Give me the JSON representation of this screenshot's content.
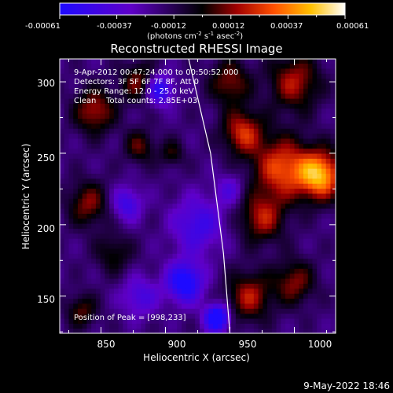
{
  "colorbar": {
    "ticks": [
      "-0.00061",
      "-0.00037",
      "-0.00012",
      "0.00012",
      "0.00037",
      "0.00061"
    ],
    "unit_main": "(photons cm",
    "unit_exp1": "-2",
    "unit_mid": " s",
    "unit_exp2": "-1",
    "unit_tail": " asec",
    "unit_exp3": "-2",
    "unit_close": ")",
    "colors": [
      "#1e0aff",
      "#5f00c8",
      "#000000",
      "#a00000",
      "#ff5000",
      "#ffc000",
      "#ffffff"
    ]
  },
  "chart_data": {
    "type": "heatmap",
    "title": "Reconstructed RHESSI Image",
    "xlabel": "Heliocentric X (arcsec)",
    "ylabel": "Heliocentric Y (arcsec)",
    "xlim": [
      818,
      1032
    ],
    "ylim": [
      124,
      316
    ],
    "xticks": [
      "850",
      "900",
      "950",
      "1000"
    ],
    "yticks": [
      "150",
      "200",
      "250",
      "300"
    ],
    "xtick_values": [
      850,
      900,
      950,
      1000
    ],
    "ytick_values": [
      150,
      200,
      250,
      300
    ],
    "color_range": [
      -0.00061,
      0.00061
    ],
    "limb_line": [
      [
        918,
        316
      ],
      [
        935,
        250
      ],
      [
        945,
        180
      ],
      [
        950,
        124
      ]
    ],
    "blobs": [
      {
        "x": 1020,
        "y": 235,
        "value": 0.00061,
        "r": 22
      },
      {
        "x": 990,
        "y": 240,
        "value": 0.00045,
        "r": 28
      },
      {
        "x": 960,
        "y": 265,
        "value": 0.0004,
        "r": 20
      },
      {
        "x": 975,
        "y": 205,
        "value": 0.00035,
        "r": 22
      },
      {
        "x": 1000,
        "y": 300,
        "value": 0.00035,
        "r": 25
      },
      {
        "x": 950,
        "y": 300,
        "value": 0.0003,
        "r": 20
      },
      {
        "x": 965,
        "y": 150,
        "value": 0.00035,
        "r": 22
      },
      {
        "x": 1000,
        "y": 160,
        "value": 0.0003,
        "r": 20
      },
      {
        "x": 845,
        "y": 280,
        "value": 0.00035,
        "r": 20
      },
      {
        "x": 880,
        "y": 300,
        "value": 0.0003,
        "r": 18
      },
      {
        "x": 840,
        "y": 215,
        "value": 0.0003,
        "r": 20
      },
      {
        "x": 880,
        "y": 255,
        "value": 0.00025,
        "r": 15
      },
      {
        "x": 860,
        "y": 180,
        "value": 0.0002,
        "r": 18
      },
      {
        "x": 835,
        "y": 140,
        "value": 0.00025,
        "r": 15
      },
      {
        "x": 905,
        "y": 250,
        "value": 0.0002,
        "r": 12
      },
      {
        "x": 925,
        "y": 200,
        "value": -0.0003,
        "r": 25
      },
      {
        "x": 915,
        "y": 160,
        "value": -0.0005,
        "r": 18
      },
      {
        "x": 940,
        "y": 135,
        "value": -0.00061,
        "r": 12
      },
      {
        "x": 895,
        "y": 295,
        "value": -0.00045,
        "r": 14
      },
      {
        "x": 870,
        "y": 215,
        "value": -0.0003,
        "r": 15
      },
      {
        "x": 880,
        "y": 150,
        "value": -0.00025,
        "r": 18
      },
      {
        "x": 950,
        "y": 225,
        "value": -0.0002,
        "r": 14
      }
    ],
    "annotations": {
      "time": "9-Apr-2012 00:47:24.000 to 00:50:52.000",
      "detectors": "Detectors: 3F 5F 6F 7F 8F, Att 0",
      "energy": "Energy Range: 12.0 - 25.0 keV",
      "clean": "Clean    Total counts: 2.85E+03",
      "peak": "Position of Peak = [998,233]"
    }
  },
  "footer_timestamp": "9-May-2022 18:46"
}
